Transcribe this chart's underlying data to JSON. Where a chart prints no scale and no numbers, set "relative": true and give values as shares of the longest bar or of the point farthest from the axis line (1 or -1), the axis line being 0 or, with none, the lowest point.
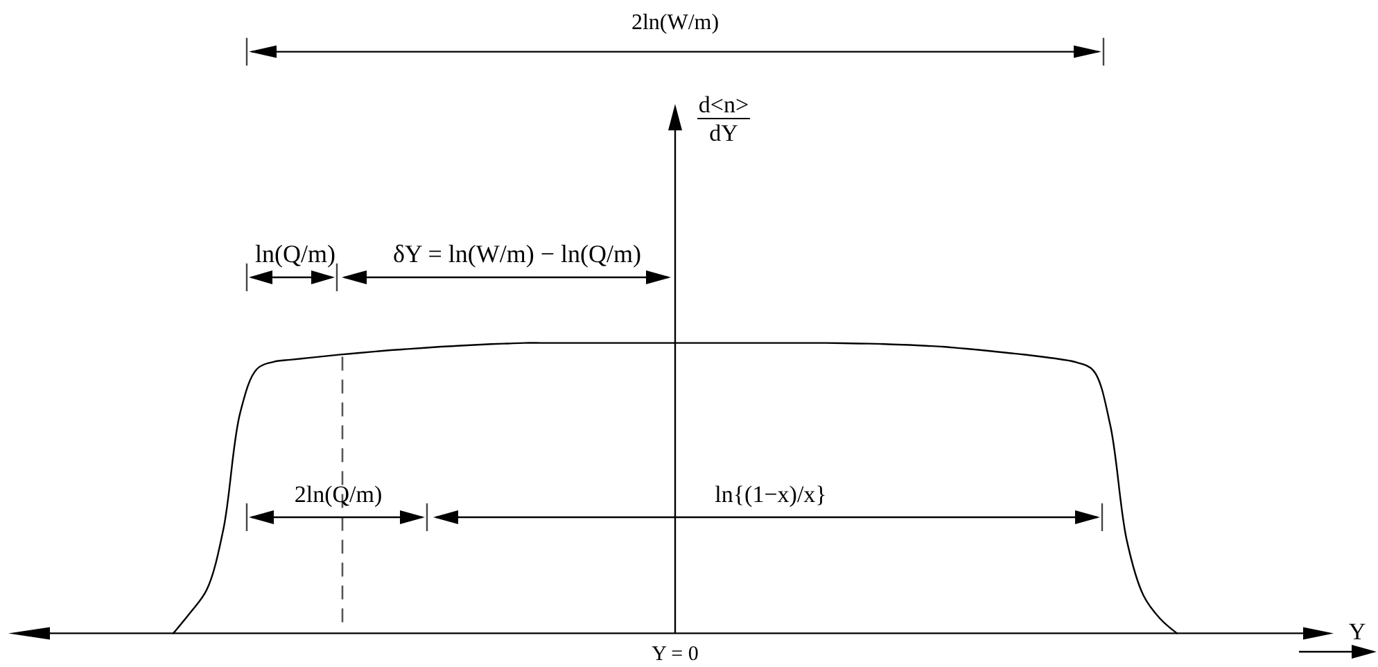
{
  "chart_data": {
    "type": "line",
    "relative": true,
    "categories": [
      null,
      null,
      null,
      null,
      null,
      null,
      null,
      null,
      null,
      null,
      null,
      null,
      null,
      null,
      null,
      null,
      null,
      null,
      null,
      null,
      null,
      null,
      null,
      null,
      null,
      null,
      null,
      null,
      null,
      null,
      null,
      null,
      null,
      null,
      null,
      null,
      null,
      null,
      null,
      null,
      null,
      null,
      null,
      null,
      null,
      null,
      null,
      null,
      null,
      null,
      null,
      null,
      null,
      null,
      null,
      null,
      null,
      null,
      null,
      null,
      null
    ],
    "series": [
      {
        "color": "#000000",
        "values": [
          0,
          0.07,
          0.15,
          0.36,
          0.76,
          0.91,
          0.935,
          0.942,
          0.948,
          0.954,
          0.96,
          0.965,
          0.97,
          0.975,
          0.979,
          0.983,
          0.987,
          0.99,
          0.993,
          0.996,
          0.998,
          1,
          1,
          1,
          1,
          1,
          1,
          1,
          1,
          1,
          1,
          1,
          1,
          1,
          1,
          1,
          1,
          1,
          1,
          1,
          0.999,
          0.998,
          0.997,
          0.995,
          0.993,
          0.99,
          0.987,
          0.982,
          0.977,
          0.971,
          0.965,
          0.959,
          0.952,
          0.944,
          0.933,
          0.905,
          0.72,
          0.32,
          0.13,
          0.05,
          0
        ]
      }
    ],
    "annotations": [
      "2ln(W/m)",
      "ln(Q/m)",
      "δY = ln(W/m) − ln(Q/m)",
      "2ln(Q/m)",
      "ln{(1−x)/x}",
      "Y = 0",
      "Y",
      "d<n>\ndY"
    ]
  }
}
